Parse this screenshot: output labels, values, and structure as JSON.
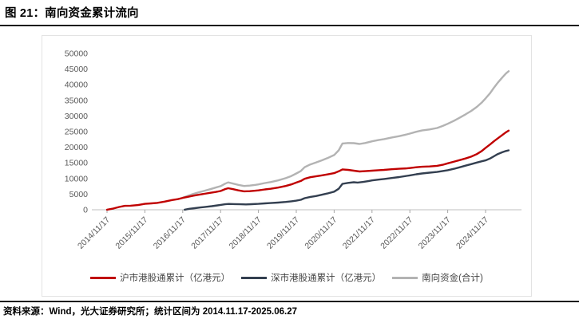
{
  "figure": {
    "title": "图 21：南向资金累计流向"
  },
  "source_note": "资料来源：Wind，光大证券研究所；统计区间为 2014.11.17-2025.06.27",
  "colors": {
    "accent_red": "#C00000",
    "dark_navy": "#333F50",
    "light_gray_line": "#B3B3B3",
    "axis_text": "#595959",
    "axis_line": "#BFBFBF",
    "rule_black": "#1a1a1a"
  },
  "chart_data": {
    "type": "line",
    "title": "南向资金累计流向",
    "xlabel": "",
    "ylabel": "",
    "grid": false,
    "legend_position": "bottom",
    "y_axis": {
      "min": 0,
      "max": 50000,
      "step": 5000,
      "tick_labels": [
        "0",
        "5000",
        "10000",
        "15000",
        "20000",
        "25000",
        "30000",
        "35000",
        "40000",
        "45000",
        "50000"
      ]
    },
    "x_axis": {
      "unit": "decimal_year",
      "tick_values": [
        2014.88,
        2015.88,
        2016.88,
        2017.88,
        2018.88,
        2019.88,
        2020.88,
        2021.88,
        2022.88,
        2023.88,
        2024.88
      ],
      "tick_labels": [
        "2014/11/17",
        "2015/11/17",
        "2016/11/17",
        "2017/11/17",
        "2018/11/17",
        "2019/11/17",
        "2020/11/17",
        "2021/11/17",
        "2022/11/17",
        "2023/11/17",
        "2024/11/17"
      ],
      "data_end": 2025.49
    },
    "series": [
      {
        "name": "沪市港股通累计（亿港元）",
        "color": "#C00000",
        "points": [
          [
            2014.88,
            30
          ],
          [
            2015.05,
            400
          ],
          [
            2015.2,
            900
          ],
          [
            2015.35,
            1250
          ],
          [
            2015.5,
            1300
          ],
          [
            2015.7,
            1500
          ],
          [
            2015.88,
            1900
          ],
          [
            2016.05,
            2050
          ],
          [
            2016.2,
            2200
          ],
          [
            2016.4,
            2600
          ],
          [
            2016.6,
            3100
          ],
          [
            2016.75,
            3400
          ],
          [
            2016.88,
            3800
          ],
          [
            2017.0,
            4100
          ],
          [
            2017.15,
            4500
          ],
          [
            2017.3,
            4800
          ],
          [
            2017.45,
            5100
          ],
          [
            2017.6,
            5400
          ],
          [
            2017.75,
            5700
          ],
          [
            2017.88,
            6000
          ],
          [
            2018.0,
            6600
          ],
          [
            2018.08,
            6900
          ],
          [
            2018.2,
            6600
          ],
          [
            2018.35,
            6200
          ],
          [
            2018.5,
            5900
          ],
          [
            2018.65,
            5950
          ],
          [
            2018.8,
            6100
          ],
          [
            2018.88,
            6200
          ],
          [
            2019.05,
            6500
          ],
          [
            2019.2,
            6700
          ],
          [
            2019.4,
            7100
          ],
          [
            2019.6,
            7600
          ],
          [
            2019.75,
            8100
          ],
          [
            2019.88,
            8700
          ],
          [
            2020.0,
            9200
          ],
          [
            2020.1,
            9900
          ],
          [
            2020.25,
            10400
          ],
          [
            2020.4,
            10700
          ],
          [
            2020.55,
            11000
          ],
          [
            2020.7,
            11300
          ],
          [
            2020.88,
            11700
          ],
          [
            2021.0,
            12300
          ],
          [
            2021.1,
            12900
          ],
          [
            2021.25,
            12750
          ],
          [
            2021.4,
            12500
          ],
          [
            2021.55,
            12250
          ],
          [
            2021.7,
            12350
          ],
          [
            2021.88,
            12500
          ],
          [
            2022.05,
            12650
          ],
          [
            2022.2,
            12750
          ],
          [
            2022.4,
            12950
          ],
          [
            2022.6,
            13100
          ],
          [
            2022.8,
            13250
          ],
          [
            2022.88,
            13350
          ],
          [
            2023.05,
            13600
          ],
          [
            2023.2,
            13750
          ],
          [
            2023.4,
            13850
          ],
          [
            2023.6,
            14050
          ],
          [
            2023.75,
            14400
          ],
          [
            2023.88,
            14850
          ],
          [
            2024.05,
            15400
          ],
          [
            2024.2,
            15900
          ],
          [
            2024.35,
            16400
          ],
          [
            2024.5,
            17000
          ],
          [
            2024.65,
            17800
          ],
          [
            2024.78,
            18800
          ],
          [
            2024.88,
            19800
          ],
          [
            2025.0,
            20900
          ],
          [
            2025.1,
            21900
          ],
          [
            2025.2,
            22800
          ],
          [
            2025.32,
            23900
          ],
          [
            2025.42,
            24800
          ],
          [
            2025.49,
            25300
          ]
        ]
      },
      {
        "name": "深市港股通累计（亿港元）",
        "color": "#333F50",
        "points": [
          [
            2016.93,
            30
          ],
          [
            2017.05,
            300
          ],
          [
            2017.2,
            520
          ],
          [
            2017.35,
            750
          ],
          [
            2017.5,
            950
          ],
          [
            2017.65,
            1150
          ],
          [
            2017.8,
            1400
          ],
          [
            2017.88,
            1550
          ],
          [
            2018.0,
            1750
          ],
          [
            2018.1,
            1850
          ],
          [
            2018.25,
            1800
          ],
          [
            2018.4,
            1750
          ],
          [
            2018.55,
            1700
          ],
          [
            2018.7,
            1780
          ],
          [
            2018.88,
            1900
          ],
          [
            2019.05,
            2050
          ],
          [
            2019.2,
            2150
          ],
          [
            2019.4,
            2300
          ],
          [
            2019.6,
            2500
          ],
          [
            2019.75,
            2700
          ],
          [
            2019.88,
            2900
          ],
          [
            2020.0,
            3200
          ],
          [
            2020.1,
            3700
          ],
          [
            2020.25,
            4100
          ],
          [
            2020.4,
            4400
          ],
          [
            2020.55,
            4800
          ],
          [
            2020.7,
            5200
          ],
          [
            2020.88,
            5800
          ],
          [
            2021.0,
            6700
          ],
          [
            2021.1,
            8300
          ],
          [
            2021.25,
            8600
          ],
          [
            2021.4,
            8800
          ],
          [
            2021.5,
            8700
          ],
          [
            2021.65,
            8900
          ],
          [
            2021.8,
            9200
          ],
          [
            2021.88,
            9400
          ],
          [
            2022.05,
            9650
          ],
          [
            2022.2,
            9850
          ],
          [
            2022.4,
            10150
          ],
          [
            2022.6,
            10450
          ],
          [
            2022.8,
            10850
          ],
          [
            2022.88,
            11000
          ],
          [
            2023.05,
            11350
          ],
          [
            2023.2,
            11600
          ],
          [
            2023.4,
            11850
          ],
          [
            2023.6,
            12100
          ],
          [
            2023.75,
            12400
          ],
          [
            2023.88,
            12650
          ],
          [
            2024.05,
            13100
          ],
          [
            2024.2,
            13600
          ],
          [
            2024.35,
            14100
          ],
          [
            2024.5,
            14600
          ],
          [
            2024.65,
            15100
          ],
          [
            2024.78,
            15500
          ],
          [
            2024.88,
            15800
          ],
          [
            2025.0,
            16400
          ],
          [
            2025.1,
            17100
          ],
          [
            2025.2,
            17800
          ],
          [
            2025.32,
            18400
          ],
          [
            2025.42,
            18800
          ],
          [
            2025.49,
            19000
          ]
        ]
      },
      {
        "name": "南向资金(合计)",
        "color": "#B3B3B3",
        "points": [
          [
            2016.88,
            3830
          ],
          [
            2017.0,
            4400
          ],
          [
            2017.15,
            5020
          ],
          [
            2017.3,
            5550
          ],
          [
            2017.45,
            6050
          ],
          [
            2017.6,
            6550
          ],
          [
            2017.75,
            7100
          ],
          [
            2017.88,
            7550
          ],
          [
            2018.0,
            8350
          ],
          [
            2018.08,
            8750
          ],
          [
            2018.2,
            8400
          ],
          [
            2018.35,
            7950
          ],
          [
            2018.5,
            7600
          ],
          [
            2018.65,
            7730
          ],
          [
            2018.8,
            7970
          ],
          [
            2018.88,
            8100
          ],
          [
            2019.05,
            8550
          ],
          [
            2019.2,
            8850
          ],
          [
            2019.4,
            9400
          ],
          [
            2019.6,
            10100
          ],
          [
            2019.75,
            10800
          ],
          [
            2019.88,
            11600
          ],
          [
            2020.0,
            12400
          ],
          [
            2020.1,
            13600
          ],
          [
            2020.25,
            14500
          ],
          [
            2020.4,
            15100
          ],
          [
            2020.55,
            15800
          ],
          [
            2020.7,
            16500
          ],
          [
            2020.88,
            17500
          ],
          [
            2021.0,
            19000
          ],
          [
            2021.1,
            21200
          ],
          [
            2021.25,
            21350
          ],
          [
            2021.4,
            21300
          ],
          [
            2021.55,
            21050
          ],
          [
            2021.7,
            21350
          ],
          [
            2021.88,
            21900
          ],
          [
            2022.05,
            22300
          ],
          [
            2022.2,
            22600
          ],
          [
            2022.4,
            23100
          ],
          [
            2022.6,
            23550
          ],
          [
            2022.8,
            24100
          ],
          [
            2022.88,
            24350
          ],
          [
            2023.05,
            24950
          ],
          [
            2023.2,
            25350
          ],
          [
            2023.4,
            25700
          ],
          [
            2023.6,
            26150
          ],
          [
            2023.75,
            26800
          ],
          [
            2023.88,
            27500
          ],
          [
            2024.05,
            28500
          ],
          [
            2024.2,
            29500
          ],
          [
            2024.35,
            30500
          ],
          [
            2024.5,
            31600
          ],
          [
            2024.65,
            32900
          ],
          [
            2024.78,
            34300
          ],
          [
            2024.88,
            35600
          ],
          [
            2025.0,
            37300
          ],
          [
            2025.1,
            39000
          ],
          [
            2025.2,
            40600
          ],
          [
            2025.32,
            42300
          ],
          [
            2025.42,
            43600
          ],
          [
            2025.49,
            44300
          ]
        ]
      }
    ]
  }
}
